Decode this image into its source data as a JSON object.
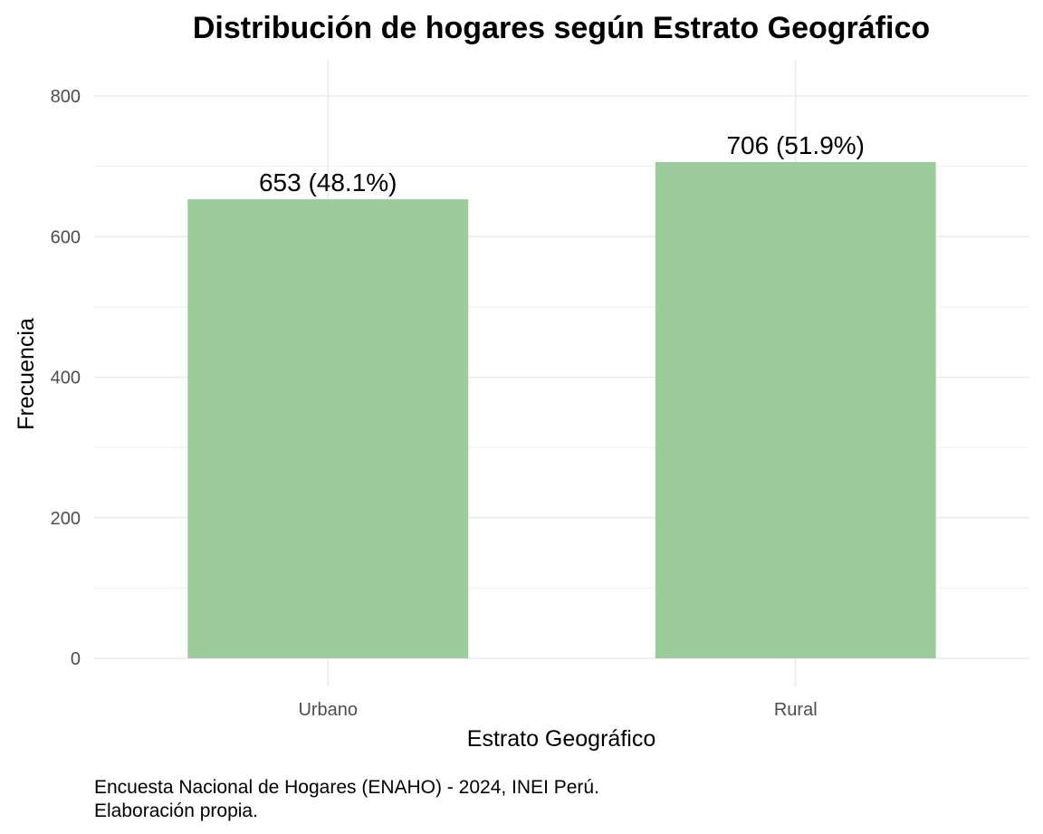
{
  "chart_data": {
    "type": "bar",
    "title": "Distribución de hogares según Estrato Geográfico",
    "xlabel": "Estrato Geográfico",
    "ylabel": "Frecuencia",
    "categories": [
      "Urbano",
      "Rural"
    ],
    "values": [
      653,
      706
    ],
    "data_labels": [
      "653 (48.1%)",
      "706 (51.9%)"
    ],
    "ylim": [
      0,
      800
    ],
    "yticks": [
      0,
      200,
      400,
      600,
      800
    ],
    "ytick_labels": [
      "0",
      "200",
      "400",
      "600",
      "800"
    ],
    "grid": true,
    "bar_color": "#9ccc9b",
    "caption": [
      "Encuesta Nacional de Hogares (ENAHO) - 2024, INEI Perú.",
      "Elaboración propia."
    ]
  }
}
